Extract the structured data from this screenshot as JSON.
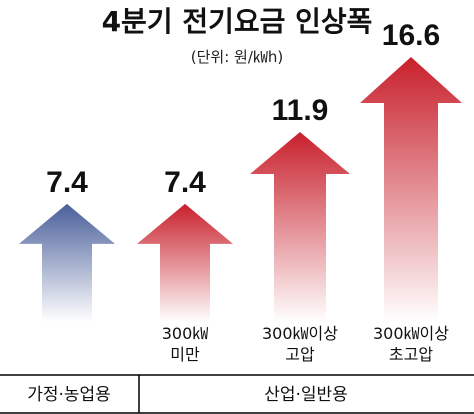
{
  "chart_data": {
    "type": "bar",
    "title": "4분기 전기요금 인상폭",
    "unit_label": "(단위: 원/㎾h)",
    "categories": [
      "",
      "300㎾\n미만",
      "300㎾이상\n고압",
      "300㎾이상\n초고압"
    ],
    "values": [
      7.4,
      7.4,
      11.9,
      16.6
    ],
    "value_labels": [
      "7.4",
      "7.4",
      "11.9",
      "16.6"
    ],
    "groups": [
      {
        "label": "가정·농업용",
        "members": [
          0
        ]
      },
      {
        "label": "산업·일반용",
        "members": [
          1,
          2,
          3
        ]
      }
    ],
    "colors": {
      "residential_top": "#4a5f9a",
      "residential_bottom": "#ffffff",
      "industrial_top": "#c8202c",
      "industrial_bottom": "#ffffff",
      "table_border": "#000000"
    },
    "ylim": [
      0,
      16.6
    ]
  }
}
